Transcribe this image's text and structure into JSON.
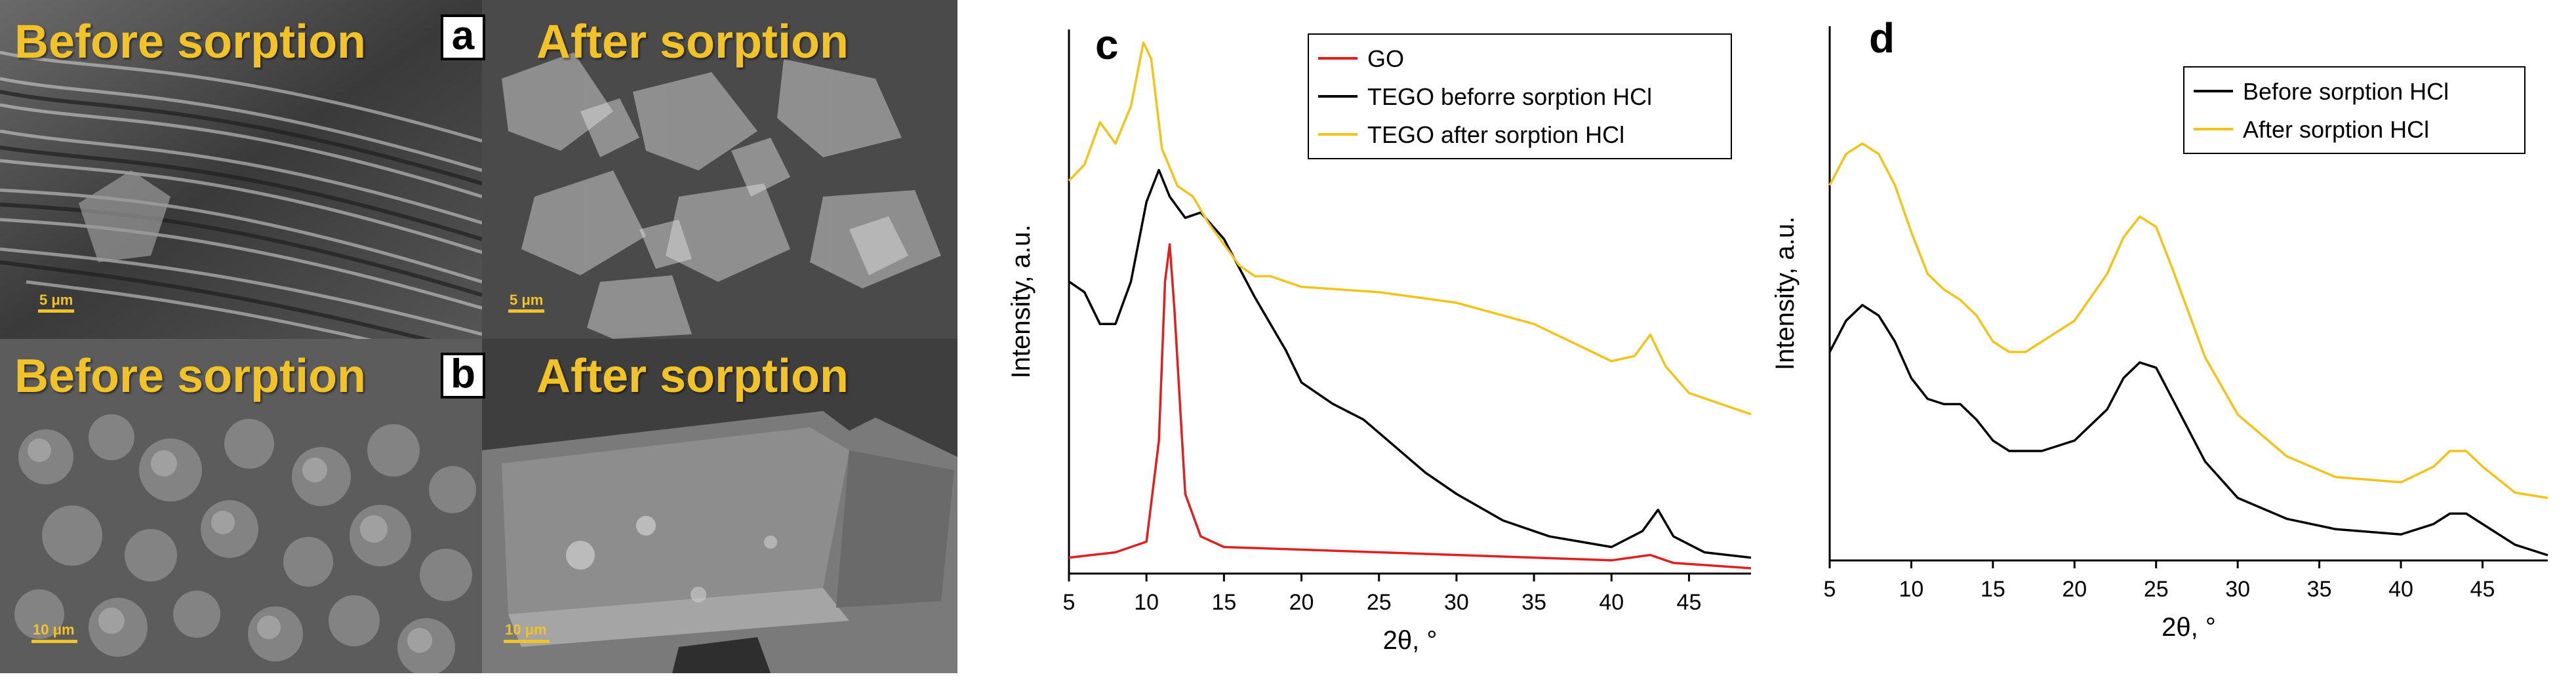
{
  "sem": {
    "panel_a": {
      "letter": "a",
      "left_label": "Before sorption",
      "right_label": "After sorption",
      "left_scale": "5 μm",
      "right_scale": "5 μm"
    },
    "panel_b": {
      "letter": "b",
      "left_label": "Before sorption",
      "right_label": "After sorption",
      "left_scale": "10 μm",
      "right_scale": "10 μm"
    },
    "colors": {
      "label": "#f2c329"
    }
  },
  "chart_data": [
    {
      "panel": "c",
      "type": "line",
      "xlabel": "2θ, °",
      "ylabel": "Intensity, a.u.",
      "xlim": [
        5,
        49
      ],
      "ylim": [
        0,
        1
      ],
      "xticks": [
        5,
        10,
        15,
        20,
        25,
        30,
        35,
        40,
        45
      ],
      "y_units": "normalized intensity (offset curves)",
      "legend_position": "top-right",
      "series": [
        {
          "name": "GO",
          "color": "#e02020",
          "x": [
            5,
            8,
            10,
            10.8,
            11.2,
            11.5,
            11.8,
            12.5,
            13.5,
            15,
            20,
            30,
            40,
            42.5,
            43,
            44,
            49
          ],
          "y": [
            0.03,
            0.04,
            0.06,
            0.25,
            0.55,
            0.62,
            0.5,
            0.15,
            0.07,
            0.05,
            0.045,
            0.035,
            0.025,
            0.035,
            0.03,
            0.02,
            0.01
          ]
        },
        {
          "name": "TEGO beforre sorption HCl",
          "color": "#000000",
          "x": [
            5,
            6,
            7,
            8,
            9,
            10,
            10.8,
            11.5,
            12.5,
            13.5,
            15,
            17,
            19,
            20,
            22,
            24,
            26,
            28,
            30,
            33,
            36,
            40,
            42,
            43,
            44,
            46,
            49
          ],
          "y": [
            0.55,
            0.53,
            0.47,
            0.47,
            0.55,
            0.7,
            0.76,
            0.71,
            0.67,
            0.68,
            0.63,
            0.52,
            0.42,
            0.36,
            0.32,
            0.29,
            0.24,
            0.19,
            0.15,
            0.1,
            0.07,
            0.05,
            0.08,
            0.12,
            0.07,
            0.04,
            0.03
          ]
        },
        {
          "name": "TEGO after sorption HCl",
          "color": "#f2c41a",
          "x": [
            5,
            6,
            7,
            8,
            9,
            9.8,
            10.3,
            11,
            12,
            13,
            14,
            15,
            16,
            17,
            18,
            20,
            25,
            30,
            35,
            40,
            41.5,
            42.5,
            43.5,
            45,
            48,
            49
          ],
          "y": [
            0.74,
            0.77,
            0.85,
            0.81,
            0.88,
            1.0,
            0.97,
            0.8,
            0.73,
            0.71,
            0.66,
            0.62,
            0.58,
            0.56,
            0.56,
            0.54,
            0.53,
            0.51,
            0.47,
            0.4,
            0.41,
            0.45,
            0.39,
            0.34,
            0.31,
            0.3
          ]
        }
      ]
    },
    {
      "panel": "d",
      "type": "line",
      "xlabel": "2θ, °",
      "ylabel": "Intensity, a.u.",
      "xlim": [
        5,
        49
      ],
      "ylim": [
        0,
        1
      ],
      "xticks": [
        5,
        10,
        15,
        20,
        25,
        30,
        35,
        40,
        45
      ],
      "y_units": "normalized intensity (offset curves)",
      "legend_position": "top-right",
      "series": [
        {
          "name": "Before sorption HCl",
          "color": "#000000",
          "x": [
            5,
            6,
            7,
            8,
            9,
            10,
            11,
            12,
            13,
            14,
            15,
            16,
            17,
            18,
            20,
            22,
            23,
            24,
            25,
            26,
            28,
            30,
            33,
            36,
            40,
            42,
            43,
            44,
            45,
            47,
            49
          ],
          "y": [
            0.4,
            0.46,
            0.49,
            0.47,
            0.42,
            0.35,
            0.31,
            0.3,
            0.3,
            0.27,
            0.23,
            0.21,
            0.21,
            0.21,
            0.23,
            0.29,
            0.35,
            0.38,
            0.37,
            0.31,
            0.19,
            0.12,
            0.08,
            0.06,
            0.05,
            0.07,
            0.09,
            0.09,
            0.07,
            0.03,
            0.01
          ]
        },
        {
          "name": "After sorption HCl",
          "color": "#f2c41a",
          "x": [
            5,
            6,
            7,
            8,
            9,
            10,
            11,
            12,
            13,
            14,
            15,
            16,
            17,
            18,
            20,
            22,
            23,
            24,
            25,
            26,
            28,
            30,
            33,
            36,
            40,
            42,
            43,
            44,
            45,
            47,
            49
          ],
          "y": [
            0.72,
            0.78,
            0.8,
            0.78,
            0.72,
            0.63,
            0.55,
            0.52,
            0.5,
            0.47,
            0.42,
            0.4,
            0.4,
            0.42,
            0.46,
            0.55,
            0.62,
            0.66,
            0.64,
            0.56,
            0.39,
            0.28,
            0.2,
            0.16,
            0.15,
            0.18,
            0.21,
            0.21,
            0.18,
            0.13,
            0.12
          ]
        }
      ]
    }
  ]
}
